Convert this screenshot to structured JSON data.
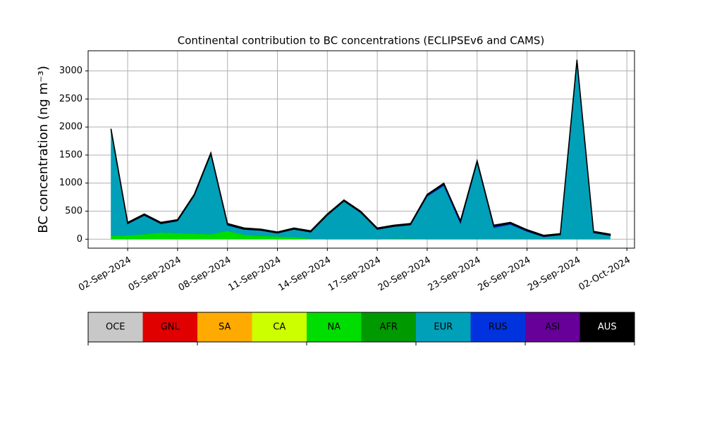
{
  "chart_data": {
    "type": "stacked_area",
    "title": "Continental contribution to BC concentrations (ECLIPSEv6 and CAMS)",
    "y_label": "BC concentration (ng m⁻³)",
    "x": [
      "2024-09-01",
      "2024-09-02",
      "2024-09-03",
      "2024-09-04",
      "2024-09-05",
      "2024-09-06",
      "2024-09-07",
      "2024-09-08",
      "2024-09-09",
      "2024-09-10",
      "2024-09-11",
      "2024-09-12",
      "2024-09-13",
      "2024-09-14",
      "2024-09-15",
      "2024-09-16",
      "2024-09-17",
      "2024-09-18",
      "2024-09-19",
      "2024-09-20",
      "2024-09-21",
      "2024-09-22",
      "2024-09-23",
      "2024-09-24",
      "2024-09-25",
      "2024-09-26",
      "2024-09-27",
      "2024-09-28",
      "2024-09-29",
      "2024-09-30",
      "2024-10-01"
    ],
    "series": [
      {
        "name": "OCE",
        "color": "#c8c8c8",
        "values": [
          0,
          0,
          0,
          0,
          0,
          0,
          0,
          0,
          0,
          0,
          0,
          0,
          0,
          0,
          0,
          0,
          0,
          0,
          0,
          0,
          0,
          0,
          0,
          0,
          0,
          0,
          0,
          0,
          0,
          0,
          0
        ]
      },
      {
        "name": "GNL",
        "color": "#e00000",
        "values": [
          0,
          0,
          0,
          0,
          0,
          0,
          0,
          0,
          0,
          0,
          0,
          0,
          0,
          0,
          0,
          0,
          0,
          0,
          0,
          0,
          0,
          0,
          0,
          0,
          0,
          0,
          0,
          0,
          0,
          0,
          0
        ]
      },
      {
        "name": "SA",
        "color": "#ffaa00",
        "values": [
          0,
          0,
          0,
          0,
          0,
          0,
          0,
          0,
          0,
          0,
          0,
          0,
          0,
          0,
          0,
          0,
          0,
          0,
          0,
          0,
          0,
          0,
          0,
          0,
          0,
          0,
          0,
          0,
          0,
          0,
          0
        ]
      },
      {
        "name": "CA",
        "color": "#ccff00",
        "values": [
          0,
          0,
          0,
          0,
          0,
          0,
          0,
          0,
          0,
          0,
          0,
          0,
          0,
          0,
          0,
          0,
          0,
          0,
          0,
          0,
          0,
          0,
          0,
          0,
          0,
          0,
          0,
          0,
          0,
          0,
          0
        ]
      },
      {
        "name": "NA",
        "color": "#00dd00",
        "values": [
          60,
          70,
          90,
          120,
          110,
          100,
          90,
          150,
          80,
          60,
          50,
          40,
          10,
          5,
          5,
          5,
          5,
          10,
          10,
          5,
          5,
          5,
          5,
          5,
          5,
          5,
          5,
          5,
          5,
          5,
          5
        ]
      },
      {
        "name": "AFR",
        "color": "#009900",
        "values": [
          0,
          0,
          0,
          0,
          0,
          0,
          0,
          0,
          0,
          0,
          0,
          0,
          0,
          0,
          0,
          0,
          0,
          0,
          0,
          0,
          0,
          0,
          0,
          0,
          0,
          0,
          0,
          0,
          0,
          0,
          0
        ]
      },
      {
        "name": "EUR",
        "color": "#00a0b8",
        "values": [
          1870,
          200,
          330,
          150,
          210,
          670,
          1410,
          95,
          90,
          95,
          55,
          135,
          115,
          420,
          670,
          465,
          165,
          215,
          240,
          755,
          945,
          265,
          1355,
          195,
          255,
          130,
          35,
          70,
          3170,
          105,
          60
        ]
      },
      {
        "name": "RUS",
        "color": "#0033dd",
        "values": [
          20,
          10,
          10,
          10,
          10,
          10,
          20,
          15,
          10,
          5,
          5,
          5,
          5,
          5,
          5,
          10,
          10,
          5,
          10,
          20,
          30,
          40,
          20,
          30,
          20,
          15,
          10,
          5,
          5,
          10,
          5
        ]
      },
      {
        "name": "ASI",
        "color": "#660099",
        "values": [
          0,
          0,
          0,
          0,
          0,
          0,
          0,
          0,
          0,
          0,
          0,
          0,
          0,
          0,
          0,
          0,
          0,
          0,
          0,
          0,
          0,
          0,
          0,
          0,
          0,
          0,
          0,
          0,
          0,
          0,
          0
        ]
      },
      {
        "name": "AUS",
        "color": "#000000",
        "values": [
          20,
          20,
          20,
          20,
          20,
          20,
          20,
          20,
          20,
          20,
          20,
          20,
          20,
          20,
          20,
          20,
          20,
          20,
          20,
          20,
          20,
          20,
          20,
          20,
          20,
          20,
          20,
          20,
          20,
          20,
          20
        ]
      }
    ],
    "xlim": [
      "2024-08-30T15:00Z",
      "2024-10-02T11:00Z"
    ],
    "xticks": [
      {
        "value": "2024-09-02",
        "label": "02-Sep-2024"
      },
      {
        "value": "2024-09-05",
        "label": "05-Sep-2024"
      },
      {
        "value": "2024-09-08",
        "label": "08-Sep-2024"
      },
      {
        "value": "2024-09-11",
        "label": "11-Sep-2024"
      },
      {
        "value": "2024-09-14",
        "label": "14-Sep-2024"
      },
      {
        "value": "2024-09-17",
        "label": "17-Sep-2024"
      },
      {
        "value": "2024-09-20",
        "label": "20-Sep-2024"
      },
      {
        "value": "2024-09-23",
        "label": "23-Sep-2024"
      },
      {
        "value": "2024-09-26",
        "label": "26-Sep-2024"
      },
      {
        "value": "2024-09-29",
        "label": "29-Sep-2024"
      },
      {
        "value": "2024-10-02",
        "label": "02-Oct-2024"
      }
    ],
    "ylim": [
      -160,
      3360
    ],
    "yticks": [
      0,
      500,
      1000,
      1500,
      2000,
      2500,
      3000
    ],
    "grid": true,
    "legend": "bottom"
  }
}
